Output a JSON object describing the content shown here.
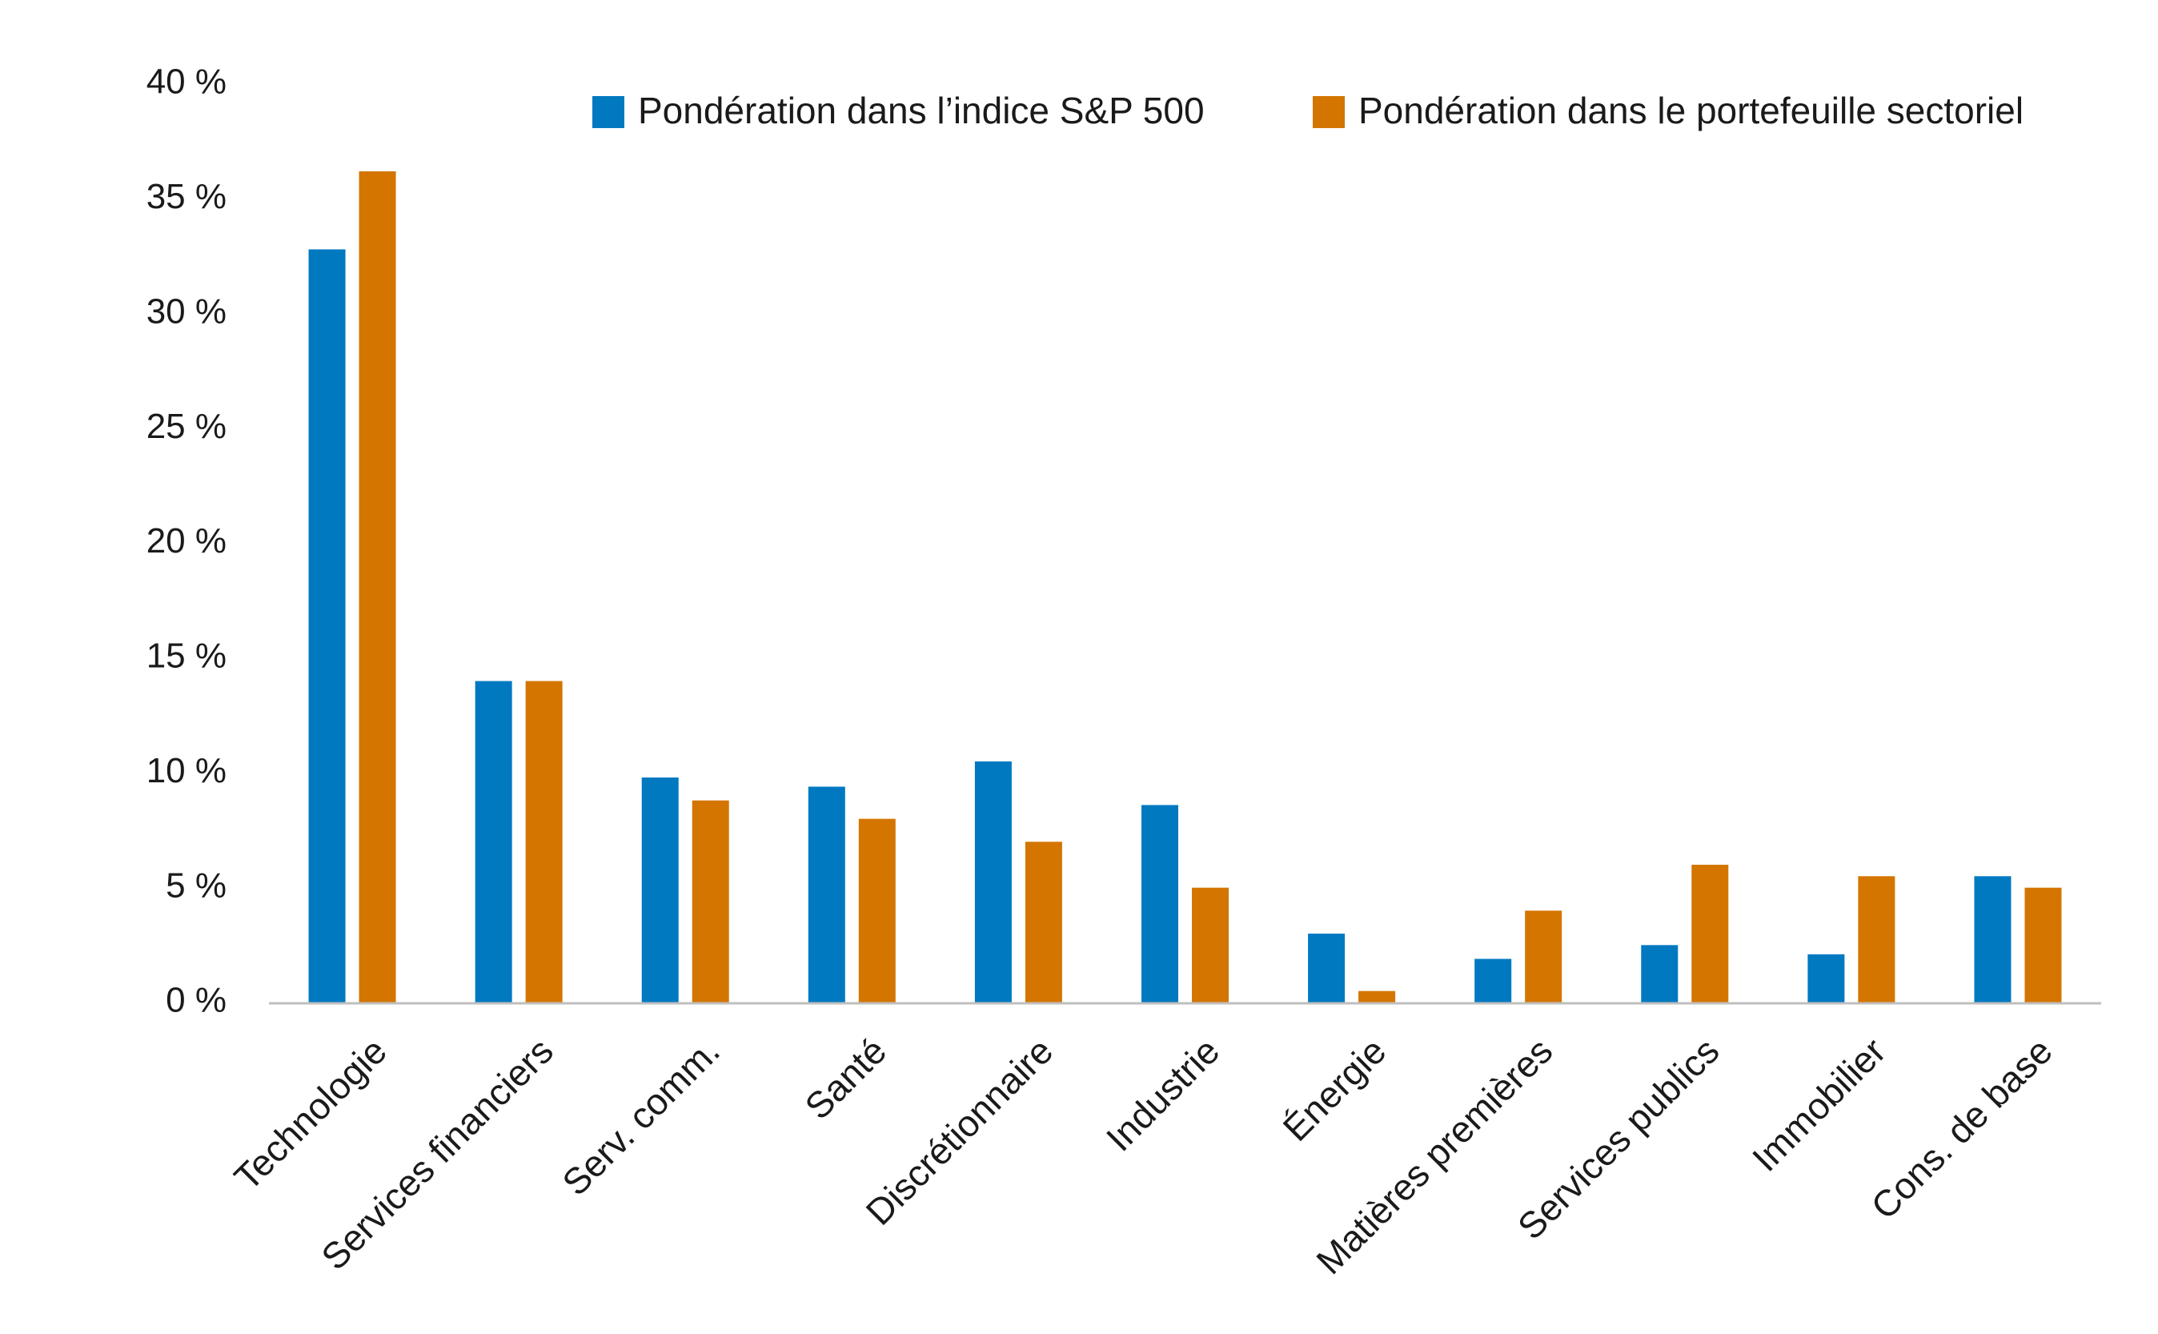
{
  "chart_data": {
    "type": "bar",
    "title": "",
    "xlabel": "",
    "ylabel": "",
    "ylim": [
      0,
      40
    ],
    "yticks": [
      0,
      5,
      10,
      15,
      20,
      25,
      30,
      35,
      40
    ],
    "ytick_labels": [
      "0 %",
      "5 %",
      "10 %",
      "15 %",
      "20 %",
      "25 %",
      "30 %",
      "35 %",
      "40 %"
    ],
    "grid": false,
    "legend_position": "top-right",
    "categories": [
      "Technologie",
      "Services financiers",
      "Serv. comm.",
      "Santé",
      "Discrétionnaire",
      "Industrie",
      "Énergie",
      "Matières premières",
      "Services publics",
      "Immobilier",
      "Cons. de base"
    ],
    "series": [
      {
        "name": "Pondération dans l’indice S&P 500",
        "color": "#0079C1",
        "values": [
          32.8,
          14.0,
          9.8,
          9.4,
          10.5,
          8.6,
          3.0,
          1.9,
          2.5,
          2.1,
          5.5
        ]
      },
      {
        "name": "Pondération dans le portefeuille sectoriel",
        "color": "#D47500",
        "values": [
          36.2,
          14.0,
          8.8,
          8.0,
          7.0,
          5.0,
          0.5,
          4.0,
          6.0,
          5.5,
          5.0
        ]
      }
    ],
    "axis_color": "#BFBFBF"
  }
}
